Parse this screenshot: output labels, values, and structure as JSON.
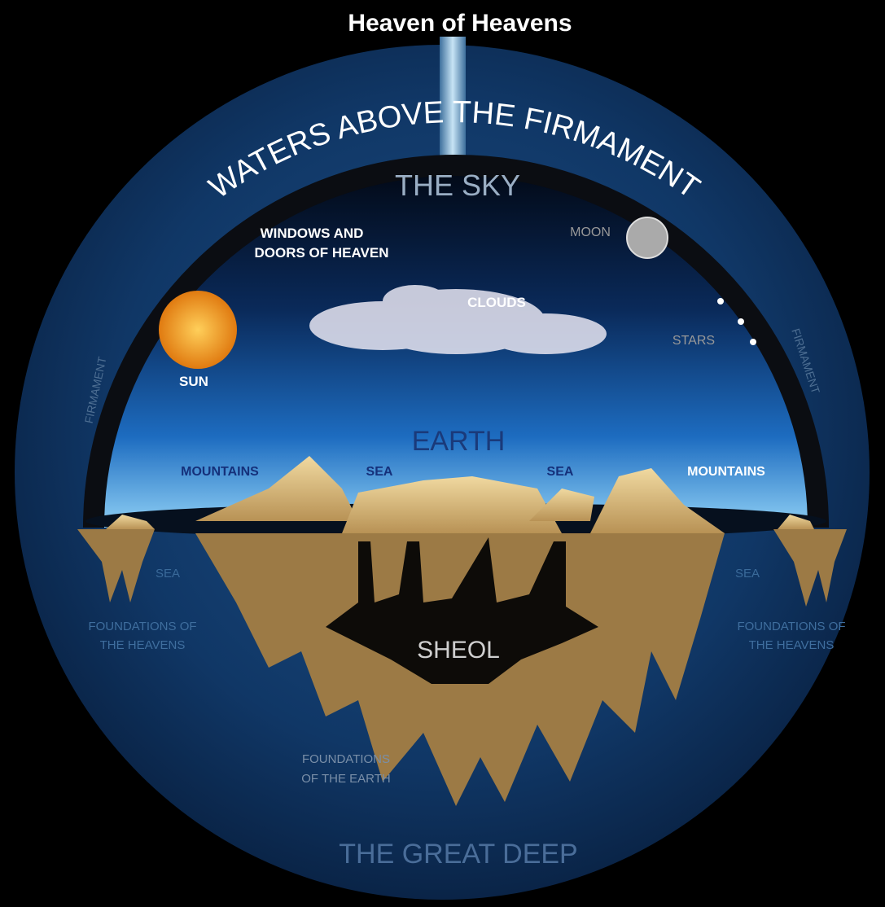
{
  "title": "Heaven of Heavens",
  "waters": "WATERS ABOVE THE FIRMAMENT",
  "sky": "THE SKY",
  "windows": [
    "WINDOWS AND",
    "DOORS OF HEAVEN"
  ],
  "moon": "MOON",
  "clouds": "CLOUDS",
  "stars": "STARS",
  "sun": "SUN",
  "firmament_left": "FIRMAMENT",
  "firmament_right": "FIRMAMENT",
  "earth": "EARTH",
  "mountains_left": "MOUNTAINS",
  "sea_left": "SEA",
  "sea_right": "SEA",
  "mountains_right": "MOUNTAINS",
  "sea_below_left": "SEA",
  "sea_below_right": "SEA",
  "foundations_heavens_left": [
    "FOUNDATIONS OF",
    "THE HEAVENS"
  ],
  "foundations_heavens_right": [
    "FOUNDATIONS OF",
    "THE HEAVENS"
  ],
  "sheol": "SHEOL",
  "foundations_earth": [
    "FOUNDATIONS",
    "OF THE EARTH"
  ],
  "great_deep": "THE GREAT DEEP"
}
